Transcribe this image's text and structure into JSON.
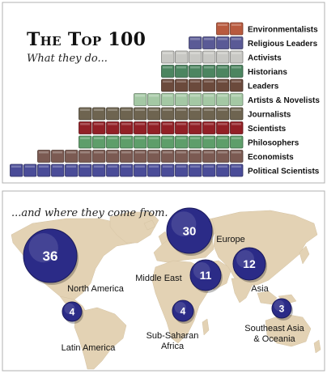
{
  "header": {
    "title": "The Top 100",
    "subtitle": "What they do..."
  },
  "map_section": {
    "subtitle": "...and where they come from."
  },
  "chart_data": [
    {
      "type": "bar",
      "orientation": "horizontal",
      "unit": "people",
      "categories": [
        "Environmentalists",
        "Religious Leaders",
        "Activists",
        "Historians",
        "Leaders",
        "Artists & Novelists",
        "Journalists",
        "Scientists",
        "Philosophers",
        "Economists",
        "Political Scientists"
      ],
      "values": [
        2,
        4,
        6,
        6,
        6,
        8,
        12,
        12,
        12,
        15,
        17
      ],
      "colors": [
        "#b85a3e",
        "#5a5a96",
        "#c8c8c4",
        "#4c8560",
        "#6b4a3c",
        "#a4c8a4",
        "#6e6450",
        "#922026",
        "#5e9e6a",
        "#7b5a52",
        "#4a4c98"
      ],
      "label_align": "left"
    },
    {
      "type": "map",
      "regions": [
        {
          "name": "North America",
          "value": "36"
        },
        {
          "name": "Europe",
          "value": "30"
        },
        {
          "name": "Asia",
          "value": "12"
        },
        {
          "name": "Middle East",
          "value": "11"
        },
        {
          "name": "Latin America",
          "value": "4"
        },
        {
          "name": "Sub-Saharan\nAfrica",
          "value": "4"
        },
        {
          "name": "Southeast Asia\n& Oceania",
          "value": "3"
        }
      ],
      "bubble_color": "#2b2b87",
      "land_color": "#e3d2b4"
    }
  ]
}
